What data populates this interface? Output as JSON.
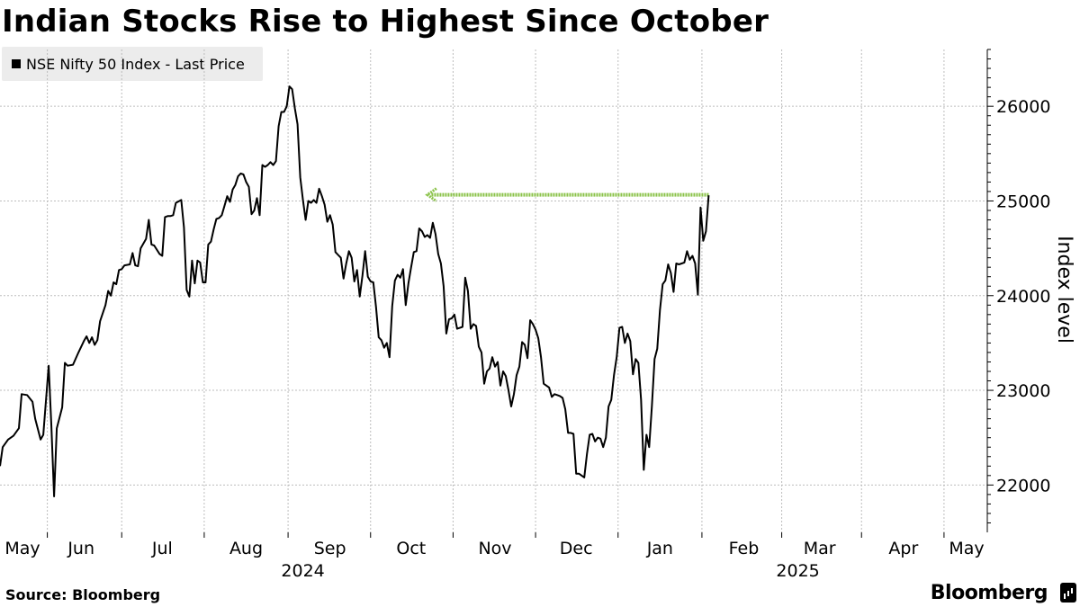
{
  "title": "Indian Stocks Rise to Highest Since October",
  "legend": {
    "label": "NSE Nifty 50 Index - Last Price",
    "color": "#000000"
  },
  "source": "Source: Bloomberg",
  "brand": "Bloomberg",
  "brand_icon": "bloomberg-terminal-icon",
  "chart_data": {
    "type": "line",
    "title": "Indian Stocks Rise to Highest Since October",
    "xlabel": "",
    "ylabel": "Index level",
    "ylim": [
      21500,
      26600
    ],
    "yticks": [
      22000,
      23000,
      24000,
      25000,
      26000
    ],
    "xlim": [
      0,
      365
    ],
    "grid": true,
    "legend_position": "top-left",
    "month_labels": [
      "May",
      "Jun",
      "Jul",
      "Aug",
      "Sep",
      "Oct",
      "Nov",
      "Dec",
      "Jan",
      "Feb",
      "Mar",
      "Apr",
      "May"
    ],
    "month_positions": [
      5,
      30,
      60,
      91,
      122,
      152,
      183,
      213,
      244,
      275,
      303,
      334,
      364
    ],
    "year_labels": [
      {
        "label": "2024",
        "at": 112
      },
      {
        "label": "2025",
        "at": 295
      }
    ],
    "series": [
      {
        "name": "NSE Nifty 50 Index - Last Price",
        "color": "#000000",
        "points": [
          [
            0,
            22200
          ],
          [
            1,
            22400
          ],
          [
            3,
            22480
          ],
          [
            5,
            22520
          ],
          [
            7,
            22600
          ],
          [
            8,
            22960
          ],
          [
            10,
            22950
          ],
          [
            12,
            22880
          ],
          [
            13,
            22700
          ],
          [
            15,
            22480
          ],
          [
            16,
            22530
          ],
          [
            18,
            23260
          ],
          [
            19,
            22620
          ],
          [
            20,
            21880
          ],
          [
            21,
            22600
          ],
          [
            23,
            22820
          ],
          [
            24,
            23290
          ],
          [
            25,
            23260
          ],
          [
            27,
            23270
          ],
          [
            29,
            23400
          ],
          [
            31,
            23520
          ],
          [
            32,
            23570
          ],
          [
            33,
            23500
          ],
          [
            34,
            23560
          ],
          [
            35,
            23480
          ],
          [
            36,
            23530
          ],
          [
            37,
            23730
          ],
          [
            39,
            23900
          ],
          [
            40,
            24050
          ],
          [
            41,
            24000
          ],
          [
            42,
            24140
          ],
          [
            43,
            24120
          ],
          [
            44,
            24270
          ],
          [
            45,
            24280
          ],
          [
            46,
            24320
          ],
          [
            48,
            24330
          ],
          [
            49,
            24450
          ],
          [
            50,
            24320
          ],
          [
            51,
            24310
          ],
          [
            52,
            24500
          ],
          [
            54,
            24600
          ],
          [
            55,
            24800
          ],
          [
            56,
            24540
          ],
          [
            57,
            24530
          ],
          [
            59,
            24440
          ],
          [
            60,
            24420
          ],
          [
            61,
            24830
          ],
          [
            62,
            24840
          ],
          [
            63,
            24840
          ],
          [
            64,
            24850
          ],
          [
            65,
            24980
          ],
          [
            67,
            25010
          ],
          [
            68,
            24720
          ],
          [
            69,
            24060
          ],
          [
            70,
            23990
          ],
          [
            71,
            24370
          ],
          [
            72,
            24130
          ],
          [
            73,
            24370
          ],
          [
            74,
            24350
          ],
          [
            75,
            24140
          ],
          [
            76,
            24140
          ],
          [
            77,
            24540
          ],
          [
            78,
            24570
          ],
          [
            79,
            24700
          ],
          [
            80,
            24810
          ],
          [
            81,
            24820
          ],
          [
            82,
            24850
          ],
          [
            83,
            24950
          ],
          [
            84,
            25050
          ],
          [
            85,
            24990
          ],
          [
            86,
            25120
          ],
          [
            87,
            25170
          ],
          [
            88,
            25260
          ],
          [
            89,
            25290
          ],
          [
            90,
            25280
          ],
          [
            91,
            25200
          ],
          [
            92,
            25150
          ],
          [
            93,
            24860
          ],
          [
            94,
            24900
          ],
          [
            95,
            25030
          ],
          [
            96,
            24850
          ],
          [
            97,
            25380
          ],
          [
            98,
            25360
          ],
          [
            99,
            25380
          ],
          [
            100,
            25410
          ],
          [
            101,
            25380
          ],
          [
            102,
            25420
          ],
          [
            103,
            25790
          ],
          [
            104,
            25940
          ],
          [
            105,
            25940
          ],
          [
            106,
            26000
          ],
          [
            107,
            26210
          ],
          [
            108,
            26180
          ],
          [
            109,
            25980
          ],
          [
            110,
            25810
          ],
          [
            111,
            25250
          ],
          [
            112,
            25010
          ],
          [
            113,
            24800
          ],
          [
            114,
            25000
          ],
          [
            115,
            24980
          ],
          [
            116,
            25010
          ],
          [
            117,
            24980
          ],
          [
            118,
            25130
          ],
          [
            119,
            25050
          ],
          [
            120,
            24960
          ],
          [
            121,
            24780
          ],
          [
            122,
            24850
          ],
          [
            123,
            24750
          ],
          [
            124,
            24460
          ],
          [
            125,
            24430
          ],
          [
            126,
            24400
          ],
          [
            127,
            24180
          ],
          [
            128,
            24340
          ],
          [
            129,
            24470
          ],
          [
            130,
            24400
          ],
          [
            131,
            24150
          ],
          [
            132,
            24270
          ],
          [
            133,
            23990
          ],
          [
            134,
            24210
          ],
          [
            135,
            24470
          ],
          [
            136,
            24200
          ],
          [
            137,
            24150
          ],
          [
            138,
            24140
          ],
          [
            139,
            23880
          ],
          [
            140,
            23560
          ],
          [
            141,
            23530
          ],
          [
            142,
            23450
          ],
          [
            143,
            23500
          ],
          [
            144,
            23350
          ],
          [
            145,
            23890
          ],
          [
            146,
            24160
          ],
          [
            147,
            24220
          ],
          [
            148,
            24190
          ],
          [
            149,
            24280
          ],
          [
            150,
            23900
          ],
          [
            151,
            24130
          ],
          [
            152,
            24300
          ],
          [
            153,
            24460
          ],
          [
            154,
            24470
          ],
          [
            155,
            24710
          ],
          [
            156,
            24680
          ],
          [
            157,
            24620
          ],
          [
            158,
            24640
          ],
          [
            159,
            24610
          ],
          [
            160,
            24770
          ],
          [
            161,
            24650
          ],
          [
            162,
            24440
          ],
          [
            163,
            24340
          ],
          [
            164,
            24100
          ],
          [
            165,
            23600
          ],
          [
            166,
            23750
          ],
          [
            167,
            23760
          ],
          [
            168,
            23800
          ],
          [
            169,
            23650
          ],
          [
            170,
            23660
          ],
          [
            171,
            23670
          ],
          [
            172,
            24190
          ],
          [
            173,
            24050
          ],
          [
            174,
            23650
          ],
          [
            175,
            23700
          ],
          [
            176,
            23680
          ],
          [
            177,
            23460
          ],
          [
            178,
            23400
          ],
          [
            179,
            23070
          ],
          [
            180,
            23200
          ],
          [
            181,
            23230
          ],
          [
            182,
            23350
          ],
          [
            183,
            23250
          ],
          [
            184,
            23300
          ],
          [
            185,
            23050
          ],
          [
            186,
            23200
          ],
          [
            187,
            23150
          ],
          [
            188,
            23000
          ],
          [
            189,
            22830
          ],
          [
            190,
            22960
          ],
          [
            191,
            23160
          ],
          [
            192,
            23250
          ],
          [
            193,
            23510
          ],
          [
            194,
            23480
          ],
          [
            195,
            23340
          ],
          [
            196,
            23740
          ],
          [
            197,
            23700
          ],
          [
            198,
            23640
          ],
          [
            199,
            23550
          ],
          [
            200,
            23350
          ],
          [
            201,
            23070
          ],
          [
            202,
            23050
          ],
          [
            203,
            23030
          ],
          [
            204,
            22930
          ],
          [
            205,
            22960
          ],
          [
            206,
            22950
          ],
          [
            207,
            22940
          ],
          [
            208,
            22920
          ],
          [
            209,
            22800
          ],
          [
            210,
            22550
          ],
          [
            211,
            22550
          ],
          [
            212,
            22540
          ],
          [
            213,
            22120
          ],
          [
            214,
            22120
          ],
          [
            215,
            22100
          ],
          [
            216,
            22080
          ],
          [
            217,
            22330
          ],
          [
            218,
            22530
          ],
          [
            219,
            22540
          ],
          [
            220,
            22460
          ],
          [
            221,
            22500
          ],
          [
            222,
            22490
          ],
          [
            223,
            22400
          ],
          [
            224,
            22500
          ],
          [
            225,
            22830
          ],
          [
            226,
            22900
          ],
          [
            227,
            23160
          ],
          [
            228,
            23350
          ],
          [
            229,
            23660
          ],
          [
            230,
            23670
          ],
          [
            231,
            23500
          ],
          [
            232,
            23600
          ],
          [
            233,
            23520
          ],
          [
            234,
            23170
          ],
          [
            235,
            23330
          ],
          [
            236,
            23290
          ],
          [
            237,
            22900
          ],
          [
            238,
            22160
          ],
          [
            239,
            22530
          ],
          [
            240,
            22400
          ],
          [
            241,
            22830
          ],
          [
            242,
            23330
          ],
          [
            243,
            23440
          ],
          [
            244,
            23850
          ],
          [
            245,
            24120
          ],
          [
            246,
            24160
          ],
          [
            247,
            24330
          ],
          [
            248,
            24240
          ],
          [
            249,
            24040
          ],
          [
            250,
            24340
          ],
          [
            251,
            24330
          ],
          [
            252,
            24340
          ],
          [
            253,
            24350
          ],
          [
            254,
            24470
          ],
          [
            255,
            24380
          ],
          [
            256,
            24420
          ],
          [
            257,
            24340
          ],
          [
            258,
            24010
          ],
          [
            259,
            24930
          ],
          [
            260,
            24580
          ],
          [
            261,
            24680
          ],
          [
            262,
            25060
          ]
        ]
      }
    ],
    "annotation": {
      "type": "arrow",
      "from": [
        262,
        25065
      ],
      "to": [
        158,
        25065
      ],
      "color": "#8bc34a",
      "style": "dotted"
    }
  }
}
